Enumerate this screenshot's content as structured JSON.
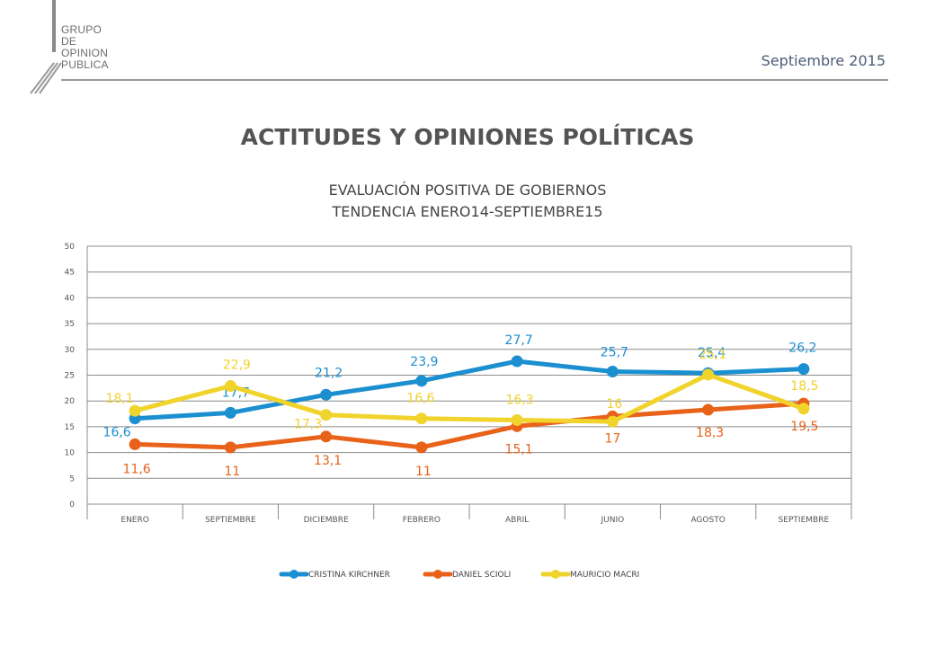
{
  "header": {
    "logo_lines": [
      "GRUPO",
      "DE",
      "OPINION",
      "PUBLICA"
    ],
    "date": "Septiembre 2015"
  },
  "slide": {
    "title": "ACTITUDES Y OPINIONES POLÍTICAS",
    "subtitle_line1": "EVALUACIÓN POSITIVA DE GOBIERNOS",
    "subtitle_line2": "TENDENCIA ENERO14-SEPTIEMBRE15"
  },
  "chart_data": {
    "type": "line",
    "title": "",
    "xlabel": "",
    "ylabel": "",
    "categories": [
      "ENERO",
      "SEPTIEMBRE",
      "DICIEMBRE",
      "FEBRERO",
      "ABRIL",
      "JUNIO",
      "AGOSTO",
      "SEPTIEMBRE"
    ],
    "ylim": [
      0,
      50
    ],
    "yticks": [
      0,
      5,
      10,
      15,
      20,
      25,
      30,
      35,
      40,
      45,
      50
    ],
    "grid": true,
    "legend_position": "bottom",
    "series": [
      {
        "name": "CRISTINA KIRCHNER",
        "color": "#1b8fcf",
        "values": [
          16.6,
          17.7,
          21.2,
          23.9,
          27.7,
          25.7,
          25.4,
          26.2
        ],
        "labels": [
          "16,6",
          "17,7",
          "21,2",
          "23,9",
          "27,7",
          "25,7",
          "25,4",
          "26,2"
        ]
      },
      {
        "name": "DANIEL SCIOLI",
        "color": "#e8621a",
        "values": [
          11.6,
          11,
          13.1,
          11,
          15.1,
          17,
          18.3,
          19.5
        ],
        "labels": [
          "11,6",
          "11",
          "13,1",
          "11",
          "15,1",
          "17",
          "18,3",
          "19,5"
        ]
      },
      {
        "name": "MAURICIO MACRI",
        "color": "#f0d32b",
        "values": [
          18.1,
          22.9,
          17.3,
          16.6,
          16.3,
          16,
          25.1,
          18.5
        ],
        "labels": [
          "18,1",
          "22,9",
          "17,3",
          "16,6",
          "16,3",
          "16",
          "25,1",
          "18,5"
        ]
      }
    ]
  }
}
